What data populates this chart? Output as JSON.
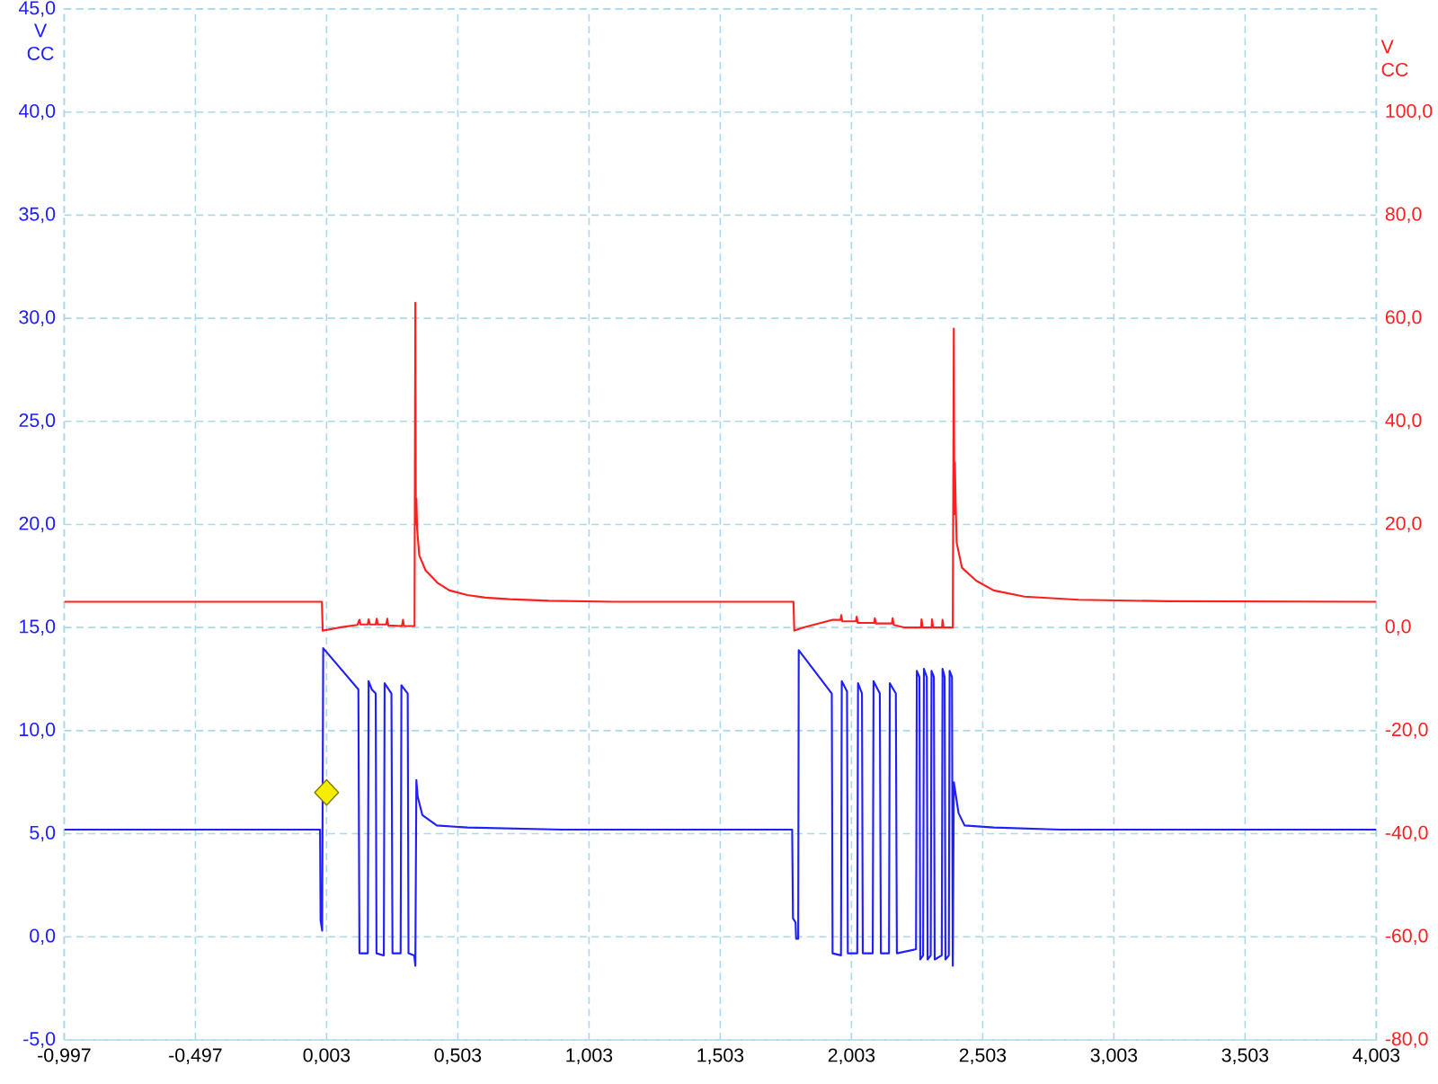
{
  "chart_data": {
    "type": "line",
    "ylabel": "V CC",
    "y2label": "V CC",
    "xlim": [
      -0.997,
      4.003
    ],
    "xticks": [
      {
        "value": -0.997,
        "label": "-0,997"
      },
      {
        "value": -0.497,
        "label": "-0,497"
      },
      {
        "value": 0.003,
        "label": "0,003"
      },
      {
        "value": 0.503,
        "label": "0,503"
      },
      {
        "value": 1.003,
        "label": "1,003"
      },
      {
        "value": 1.503,
        "label": "1,503"
      },
      {
        "value": 2.003,
        "label": "2,003"
      },
      {
        "value": 2.503,
        "label": "2,503"
      },
      {
        "value": 3.003,
        "label": "3,003"
      },
      {
        "value": 3.503,
        "label": "3,503"
      },
      {
        "value": 4.003,
        "label": "4,003"
      }
    ],
    "ylim": [
      -5,
      45
    ],
    "yticks": [
      {
        "value": -5,
        "label": "-5,0"
      },
      {
        "value": 0,
        "label": "0,0"
      },
      {
        "value": 5,
        "label": "5,0"
      },
      {
        "value": 10,
        "label": "10,0"
      },
      {
        "value": 15,
        "label": "15,0"
      },
      {
        "value": 20,
        "label": "20,0"
      },
      {
        "value": 25,
        "label": "25,0"
      },
      {
        "value": 30,
        "label": "30,0"
      },
      {
        "value": 35,
        "label": "35,0"
      },
      {
        "value": 40,
        "label": "40,0"
      },
      {
        "value": 45,
        "label": "45,0"
      }
    ],
    "y2lim": [
      -80,
      120
    ],
    "y2ticks": [
      {
        "value": -80,
        "label": "-80,0"
      },
      {
        "value": -60,
        "label": "-60,0"
      },
      {
        "value": -40,
        "label": "-40,0"
      },
      {
        "value": -20,
        "label": "-20,0"
      },
      {
        "value": 0,
        "label": "0,0"
      },
      {
        "value": 20,
        "label": "20,0"
      },
      {
        "value": 40,
        "label": "40,0"
      },
      {
        "value": 60,
        "label": "60,0"
      },
      {
        "value": 80,
        "label": "80,0"
      },
      {
        "value": 100,
        "label": "100,0"
      }
    ],
    "grid": true,
    "series": [
      {
        "color": "#1f1fff",
        "x": [
          -0.997,
          -0.022,
          -0.02,
          -0.014,
          -0.01,
          0.124,
          0.128,
          0.16,
          0.163,
          0.175,
          0.19,
          0.193,
          0.221,
          0.224,
          0.25,
          0.254,
          0.285,
          0.288,
          0.312,
          0.315,
          0.337,
          0.341,
          0.345,
          0.35,
          0.368,
          0.423,
          0.54,
          0.9,
          1.777,
          1.78,
          1.79,
          1.792,
          1.8,
          1.802,
          1.928,
          1.931,
          1.963,
          1.966,
          1.986,
          1.989,
          2.025,
          2.028,
          2.043,
          2.046,
          2.084,
          2.087,
          2.111,
          2.115,
          2.146,
          2.149,
          2.172,
          2.176,
          2.249,
          2.252,
          2.262,
          2.265,
          2.276,
          2.279,
          2.29,
          2.293,
          2.305,
          2.308,
          2.317,
          2.32,
          2.347,
          2.35,
          2.358,
          2.361,
          2.374,
          2.377,
          2.386,
          2.389,
          2.393,
          2.399,
          2.411,
          2.434,
          2.545,
          2.8,
          4.003
        ],
        "values": [
          5.2,
          5.2,
          0.8,
          0.3,
          14.0,
          12.0,
          -0.8,
          -0.8,
          12.4,
          12.0,
          11.8,
          -0.8,
          -0.9,
          12.3,
          11.8,
          -0.8,
          -0.8,
          12.2,
          11.8,
          -0.8,
          -0.9,
          -1.4,
          7.6,
          6.8,
          5.9,
          5.4,
          5.3,
          5.2,
          5.2,
          0.9,
          0.7,
          -0.1,
          -0.1,
          13.9,
          11.8,
          -0.8,
          -0.9,
          12.4,
          11.9,
          -0.8,
          -0.8,
          12.3,
          11.8,
          -0.8,
          -0.8,
          12.4,
          11.8,
          -0.8,
          -0.8,
          12.3,
          11.8,
          -0.8,
          -0.6,
          12.9,
          12.6,
          -1.1,
          -0.9,
          13.0,
          12.6,
          -1.1,
          -0.9,
          12.9,
          12.6,
          -1.1,
          -0.9,
          13.0,
          12.6,
          -1.1,
          -0.9,
          12.9,
          12.6,
          -1.4,
          7.5,
          7.0,
          6.0,
          5.4,
          5.3,
          5.2,
          5.2
        ]
      },
      {
        "color": "#ff1f1f",
        "axis": "y2",
        "x": [
          -0.997,
          -0.015,
          -0.012,
          0.05,
          0.12,
          0.128,
          0.132,
          0.16,
          0.163,
          0.168,
          0.19,
          0.194,
          0.198,
          0.23,
          0.234,
          0.238,
          0.29,
          0.294,
          0.298,
          0.338,
          0.341,
          0.343,
          0.345,
          0.348,
          0.356,
          0.38,
          0.425,
          0.471,
          0.539,
          0.608,
          0.7,
          0.85,
          1.1,
          1.782,
          1.785,
          1.818,
          1.932,
          1.962,
          1.964,
          1.968,
          2.02,
          2.023,
          2.027,
          2.09,
          2.092,
          2.096,
          2.157,
          2.16,
          2.164,
          2.206,
          2.268,
          2.27,
          2.274,
          2.308,
          2.31,
          2.314,
          2.348,
          2.35,
          2.354,
          2.389,
          2.393,
          2.395,
          2.397,
          2.4,
          2.404,
          2.424,
          2.478,
          2.545,
          2.662,
          2.868,
          3.21,
          4.003
        ],
        "values": [
          5.0,
          5.0,
          -0.6,
          0.0,
          0.5,
          1.5,
          0.6,
          0.6,
          1.6,
          0.6,
          0.6,
          1.7,
          0.6,
          0.6,
          1.7,
          0.4,
          0.3,
          1.5,
          0.3,
          0.3,
          63,
          20,
          25,
          19,
          14.0,
          11.1,
          8.7,
          7.2,
          6.3,
          5.8,
          5.5,
          5.2,
          5.0,
          5.0,
          -0.6,
          0.0,
          1.5,
          1.5,
          2.4,
          1.2,
          1.2,
          2.1,
          0.9,
          0.9,
          1.8,
          0.8,
          0.8,
          1.8,
          0.5,
          0.0,
          0.0,
          1.6,
          0.0,
          0.0,
          1.6,
          0.0,
          0.0,
          1.5,
          0.0,
          0.0,
          58,
          22,
          32,
          24,
          16.4,
          11.6,
          9.1,
          7.2,
          6.0,
          5.4,
          5.1,
          5.0
        ]
      },
      {
        "type": "scatter",
        "marker": "diamond",
        "color": "#f5ee00",
        "x": [
          0.003
        ],
        "values": [
          7.0
        ]
      }
    ]
  }
}
